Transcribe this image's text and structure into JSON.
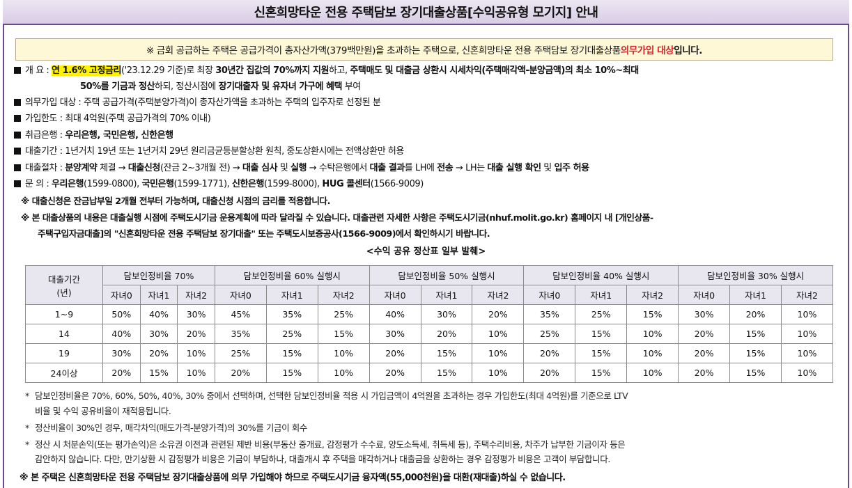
{
  "title": "신혼희망타운 전용 주택담보 장기대출상품[수익공유형 모기지] 안내",
  "notice": {
    "prefix": "※ 금회 공급하는 주택은 공급가격이 총자산가액(379백만원)을 초과하는 주택으로, 신혼희망타운 전용 주택담보 장기대출상품 ",
    "highlight": "의무가입 대상",
    "suffix": "입니다."
  },
  "overview": {
    "label": "개      요 :",
    "rate": "연 1.6% 고정금리",
    "line1a": "('23.12.29 기준)로 최장 ",
    "line1b": "30년간 집값의 70%까지 지원",
    "line1c": "하고, ",
    "line1d": "주택매도 및 대출금 상환시 시세차익(주택매각액-분양금액)의 최소 10%~최대",
    "line2a": "50%를 기금과 정산",
    "line2b": "하되, 정산시점에 ",
    "line2c": "장기대출자 및 유자녀 가구에 혜택",
    "line2d": " 부여"
  },
  "items": [
    {
      "label": "의무가입 대상",
      "text": " : 주택 공급가격(주택분양가격)이 총자산가액을 초과하는 주택의 입주자로 선정된 분"
    },
    {
      "label": "가입한도",
      "text": " : 최대 4억원(주택 공급가격의 70% 이내)"
    },
    {
      "label": "취급은행",
      "text": " : ",
      "bold": "우리은행, 국민은행, 신한은행"
    },
    {
      "label": "대출기간",
      "text": " : 1년거치 19년 또는 1년거치 29년 원리금균등분할상환 원칙, 중도상환시에는 전액상환만 허용"
    }
  ],
  "procedure": {
    "label": "대출절차 : ",
    "p1": "분양계약",
    "p2": " 체결 → ",
    "p3": "대출신청",
    "p4": "(잔금 2~3개월 전) → ",
    "p5": "대출 심사",
    "p6": " 및 ",
    "p7": "실행",
    "p8": " → 수탁은행에서 ",
    "p9": "대출 결과",
    "p10": "를 LH에 ",
    "p11": "전송",
    "p12": " → LH는 ",
    "p13": "대출 실행 확인",
    "p14": " 및 ",
    "p15": "입주 허용"
  },
  "inquiry": {
    "label": "문      의 : ",
    "b1": "우리은행",
    "t1": "(1599-0800), ",
    "b2": "국민은행",
    "t2": "(1599-1771), ",
    "b3": "신한은행",
    "t3": "(1599-8000), ",
    "b4": "HUG 콜센터",
    "t4": "(1566-9009)"
  },
  "notes": [
    "※ 대출신청은 잔금납부일 2개월 전부터 가능하며, 대출신청 시점의 금리를 적용합니다.",
    "※ 본 대출상품의 내용은 대출실행 시점에 주택도시기금 운용계획에 따라 달라질 수 있습니다. 대출관련 자세한 사항은 주택도시기금(nhuf.molit.go.kr) 홈페이지 내 [개인상품-",
    "주택구입자금대출]의 \"신혼희망타운 전용 주택담보 장기대출\" 또는 주택도시보증공사(1566-9009)에서 확인하시기 바랍니다."
  ],
  "table_caption": "<수익 공유 정산표 일부 발췌>",
  "table": {
    "corner": [
      "대출기간",
      "(년)"
    ],
    "groups": [
      "담보인정비율 70%",
      "담보인정비율 60% 실행시",
      "담보인정비율  50% 실행시",
      "담보인정비율 40% 실행시",
      "담보인정비율 30% 실행시"
    ],
    "subheads": [
      "자녀0",
      "자녀1",
      "자녀2"
    ],
    "rows": [
      {
        "period": "1~9",
        "values": [
          "50%",
          "40%",
          "30%",
          "45%",
          "35%",
          "25%",
          "40%",
          "30%",
          "20%",
          "35%",
          "25%",
          "15%",
          "30%",
          "20%",
          "10%"
        ]
      },
      {
        "period": "14",
        "values": [
          "40%",
          "30%",
          "20%",
          "35%",
          "25%",
          "15%",
          "30%",
          "20%",
          "10%",
          "25%",
          "15%",
          "10%",
          "20%",
          "15%",
          "10%"
        ]
      },
      {
        "period": "19",
        "values": [
          "30%",
          "20%",
          "10%",
          "25%",
          "15%",
          "10%",
          "20%",
          "15%",
          "10%",
          "20%",
          "15%",
          "10%",
          "20%",
          "15%",
          "10%"
        ]
      },
      {
        "period": "24이상",
        "values": [
          "20%",
          "15%",
          "10%",
          "20%",
          "15%",
          "10%",
          "20%",
          "15%",
          "10%",
          "20%",
          "15%",
          "10%",
          "20%",
          "15%",
          "10%"
        ]
      }
    ]
  },
  "footnotes": [
    "담보인정비율은 70%, 60%, 50%, 40%, 30% 중에서 선택하며, 선택한 담보인정비율 적용 시 가입금액이 4억원을 초과하는 경우 가입한도(최대 4억원)를 기준으로 LTV",
    "비율 및 수익 공유비율이 재적용됩니다.",
    "정산비율이 30%인 경우, 매각차익(매도가격-분양가격)의 30%를 기금이 회수",
    "정산 시 처분손익(또는 평가손익)은 소유권 이전과 관련된 제반 비용(부동산 중개료, 감정평가 수수료, 양도소득세, 취득세 등), 주택수리비용, 차주가 납부한 기금이자 등은",
    "감안하지 않습니다. 다만, 만기상환 시 감정평가 비용은 기금이 부담하나, 대출개시 후 주택을 매각하거나 대출금을 상환하는 경우 감정평가 비용은 고객이 부담합니다."
  ],
  "final_note": "※ 본 주택은 신혼희망타운 전용 주택담보 장기대출상품에 의무 가입해야 하므로 주택도시기금 융자액(55,000천원)을 대환(재대출)하실 수 없습니다."
}
